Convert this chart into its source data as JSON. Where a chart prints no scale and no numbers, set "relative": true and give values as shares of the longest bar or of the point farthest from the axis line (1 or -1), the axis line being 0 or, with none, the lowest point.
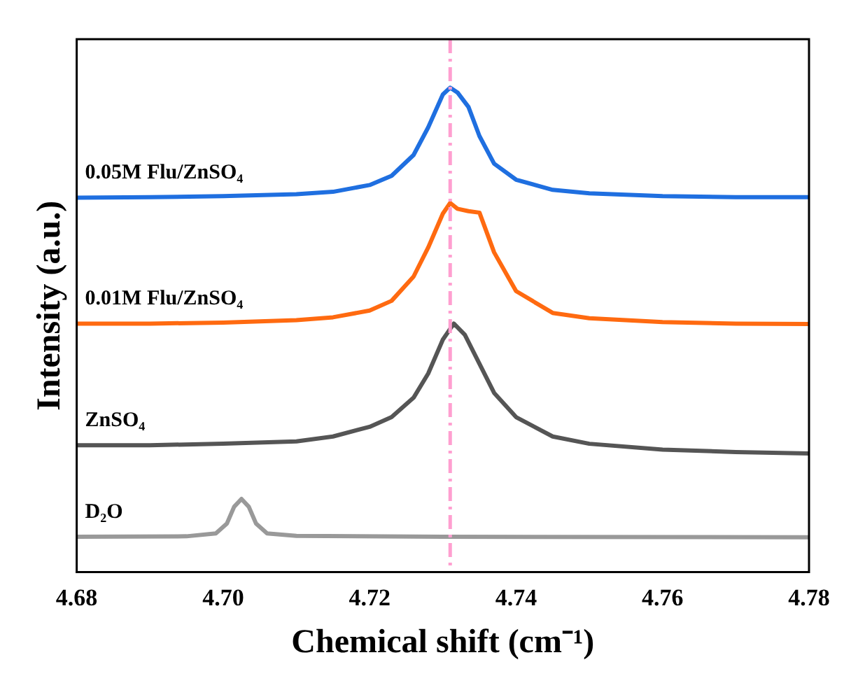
{
  "chart_data": {
    "type": "line",
    "relative": true,
    "xlabel": "Chemical shift (cm⁻¹)",
    "ylabel": "Intensity (a.u.)",
    "xlim": [
      4.68,
      4.78
    ],
    "xticks": [
      {
        "value": 4.68,
        "label": "4.68"
      },
      {
        "value": 4.7,
        "label": "4.70"
      },
      {
        "value": 4.72,
        "label": "4.72"
      },
      {
        "value": 4.74,
        "label": "4.74"
      },
      {
        "value": 4.76,
        "label": "4.76"
      },
      {
        "value": 4.78,
        "label": "4.78"
      }
    ],
    "tick_labels": "x",
    "grid": false,
    "legend": false,
    "marker": "none",
    "line_style": "solid",
    "series": [
      {
        "name": "0.05M Flu/ZnSO₄",
        "color": "#1f6fe0",
        "x": [
          4.68,
          4.69,
          4.7,
          4.71,
          4.715,
          4.72,
          4.723,
          4.726,
          4.728,
          4.73,
          4.731,
          4.732,
          4.7335,
          4.735,
          4.737,
          4.74,
          4.745,
          4.75,
          4.76,
          4.77,
          4.78
        ],
        "values": [
          0.773,
          0.774,
          0.776,
          0.78,
          0.785,
          0.799,
          0.818,
          0.861,
          0.918,
          0.986,
          1.0,
          0.99,
          0.96,
          0.9,
          0.843,
          0.81,
          0.789,
          0.782,
          0.776,
          0.774,
          0.774
        ]
      },
      {
        "name": "0.01M Flu/ZnSO₄",
        "color": "#ff6a10",
        "x": [
          4.68,
          4.69,
          4.7,
          4.71,
          4.715,
          4.72,
          4.723,
          4.726,
          4.728,
          4.73,
          4.731,
          4.732,
          4.7335,
          4.735,
          4.737,
          4.74,
          4.745,
          4.75,
          4.76,
          4.77,
          4.78
        ],
        "values": [
          0.513,
          0.513,
          0.515,
          0.52,
          0.526,
          0.54,
          0.56,
          0.61,
          0.67,
          0.74,
          0.762,
          0.75,
          0.745,
          0.742,
          0.66,
          0.58,
          0.535,
          0.524,
          0.516,
          0.513,
          0.512
        ]
      },
      {
        "name": "ZnSO₄",
        "color": "#555555",
        "x": [
          4.68,
          4.69,
          4.7,
          4.71,
          4.715,
          4.72,
          4.723,
          4.726,
          4.728,
          4.73,
          4.7315,
          4.733,
          4.735,
          4.737,
          4.74,
          4.745,
          4.75,
          4.76,
          4.77,
          4.78
        ],
        "values": [
          0.262,
          0.262,
          0.265,
          0.27,
          0.28,
          0.3,
          0.32,
          0.36,
          0.41,
          0.48,
          0.513,
          0.49,
          0.43,
          0.37,
          0.32,
          0.28,
          0.265,
          0.253,
          0.248,
          0.245
        ]
      },
      {
        "name": "D₂O",
        "color": "#999999",
        "x": [
          4.68,
          4.695,
          4.699,
          4.7005,
          4.7015,
          4.7025,
          4.7035,
          4.7045,
          4.706,
          4.71,
          4.73,
          4.78
        ],
        "values": [
          0.073,
          0.074,
          0.08,
          0.1,
          0.135,
          0.151,
          0.135,
          0.1,
          0.08,
          0.075,
          0.073,
          0.072
        ]
      }
    ],
    "ref_lines": [
      {
        "axis": "x",
        "value": 4.731,
        "color": "#ff9fd0",
        "line_style": "dashed"
      }
    ]
  }
}
